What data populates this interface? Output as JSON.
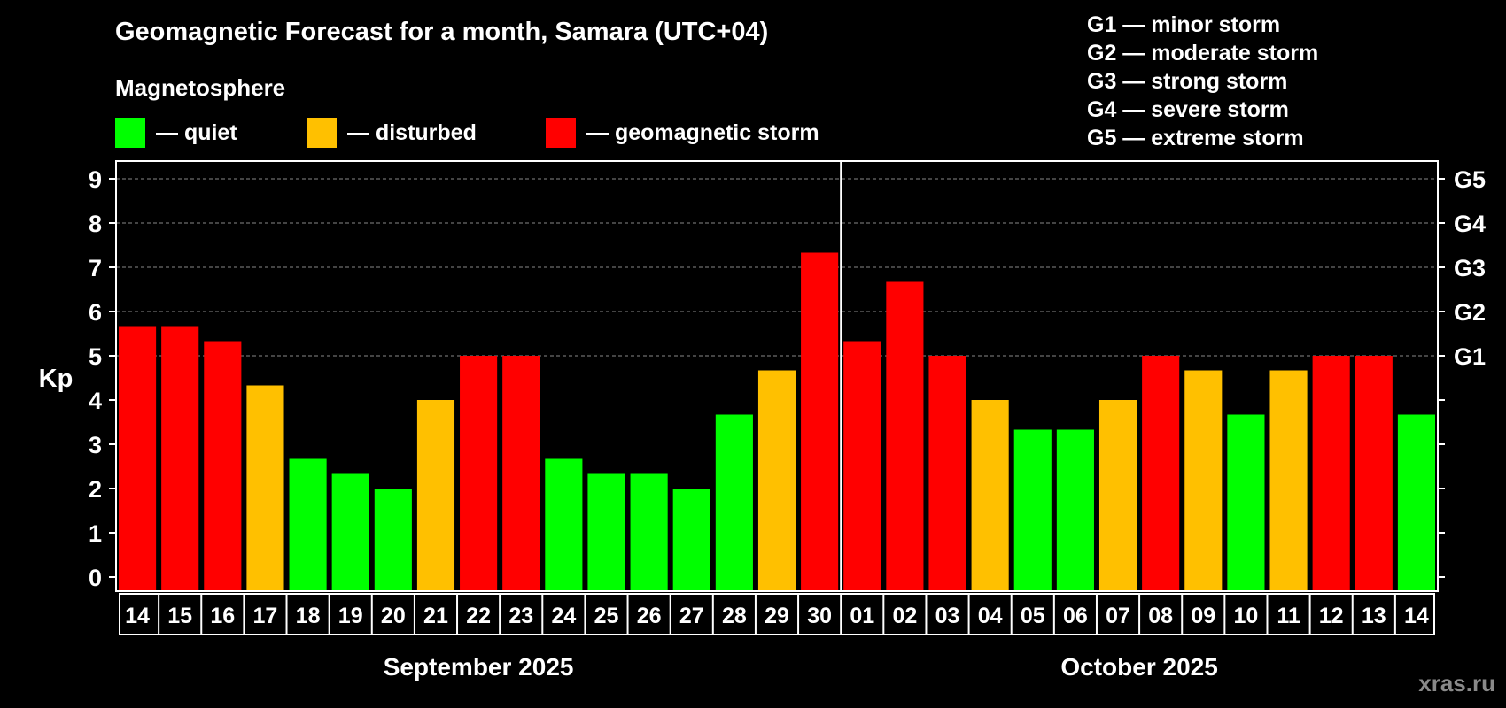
{
  "title": "Geomagnetic Forecast for a month, Samara (UTC+04)",
  "subtitle": "Magnetosphere",
  "legend": [
    {
      "label": "— quiet",
      "color": "#00ff00"
    },
    {
      "label": "— disturbed",
      "color": "#ffc000"
    },
    {
      "label": "— geomagnetic storm",
      "color": "#ff0000"
    }
  ],
  "storm_scale": [
    "G1 — minor storm",
    "G2 — moderate storm",
    "G3 — strong storm",
    "G4 — severe storm",
    "G5 — extreme storm"
  ],
  "watermark": "xras.ru",
  "chart_data": {
    "type": "bar",
    "ylabel": "Kp",
    "ylim": [
      0,
      9
    ],
    "yticks": [
      "0",
      "1",
      "2",
      "3",
      "4",
      "5",
      "6",
      "7",
      "8",
      "9"
    ],
    "right_ticks": [
      {
        "kp": 5,
        "label": "G1"
      },
      {
        "kp": 6,
        "label": "G2"
      },
      {
        "kp": 7,
        "label": "G3"
      },
      {
        "kp": 8,
        "label": "G4"
      },
      {
        "kp": 9,
        "label": "G5"
      }
    ],
    "categories": [
      "14",
      "15",
      "16",
      "17",
      "18",
      "19",
      "20",
      "21",
      "22",
      "23",
      "24",
      "25",
      "26",
      "27",
      "28",
      "29",
      "30",
      "01",
      "02",
      "03",
      "04",
      "05",
      "06",
      "07",
      "08",
      "09",
      "10",
      "11",
      "12",
      "13",
      "14"
    ],
    "values": [
      5.67,
      5.67,
      5.33,
      4.33,
      2.67,
      2.33,
      2.0,
      4.0,
      5.0,
      5.0,
      2.67,
      2.33,
      2.33,
      2.0,
      3.67,
      4.67,
      7.33,
      5.33,
      6.67,
      5.0,
      4.0,
      3.33,
      3.33,
      4.0,
      5.0,
      4.67,
      3.67,
      4.67,
      5.0,
      5.0,
      3.67
    ],
    "levels": [
      "storm",
      "storm",
      "storm",
      "disturbed",
      "quiet",
      "quiet",
      "quiet",
      "disturbed",
      "storm",
      "storm",
      "quiet",
      "quiet",
      "quiet",
      "quiet",
      "quiet",
      "disturbed",
      "storm",
      "storm",
      "storm",
      "storm",
      "disturbed",
      "quiet",
      "quiet",
      "disturbed",
      "storm",
      "disturbed",
      "quiet",
      "disturbed",
      "storm",
      "storm",
      "quiet"
    ],
    "level_colors": {
      "quiet": "#00ff00",
      "disturbed": "#ffc000",
      "storm": "#ff0000"
    },
    "months": [
      {
        "label": "September 2025",
        "days": 17
      },
      {
        "label": "October 2025",
        "days": 14
      }
    ]
  }
}
